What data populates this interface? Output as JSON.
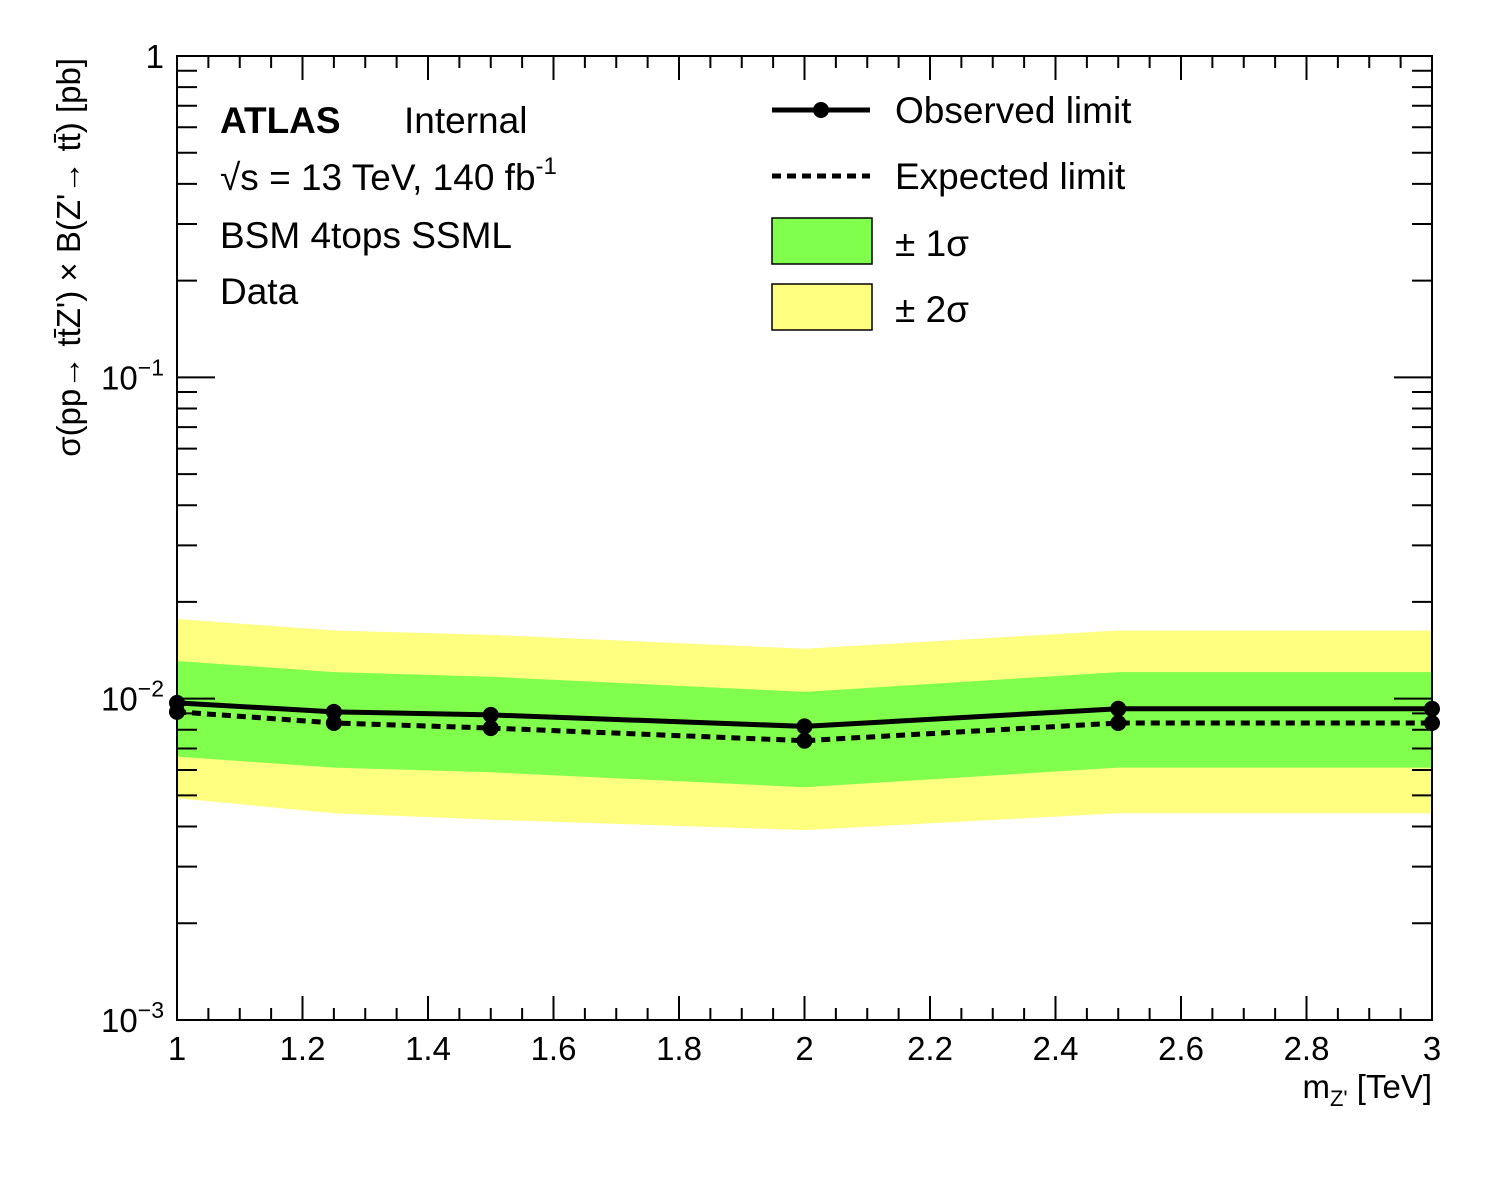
{
  "chart_data": {
    "type": "line",
    "xlabel": "m_{Z'} [TeV]",
    "xlabel_main": "m",
    "xlabel_sub": "Z'",
    "xlabel_unit": " [TeV]",
    "ylabel": "σ(pp→ tt̄Z') × B(Z'→ tt̄) [pb]",
    "xlim": [
      1,
      3
    ],
    "ylim": [
      0.001,
      1
    ],
    "yscale": "log",
    "xticks": [
      1,
      1.2,
      1.4,
      1.6,
      1.8,
      2,
      2.2,
      2.4,
      2.6,
      2.8,
      3
    ],
    "xtick_labels": [
      "1",
      "1.2",
      "1.4",
      "1.6",
      "1.8",
      "2",
      "2.2",
      "2.4",
      "2.6",
      "2.8",
      "3"
    ],
    "ytick_labels": [
      {
        "value": 1,
        "base": "1",
        "exp": ""
      },
      {
        "value": 0.1,
        "base": "10",
        "exp": "−1"
      },
      {
        "value": 0.01,
        "base": "10",
        "exp": "−2"
      },
      {
        "value": 0.001,
        "base": "10",
        "exp": "−3"
      }
    ],
    "x": [
      1,
      1.25,
      1.5,
      2,
      2.5,
      3
    ],
    "series": [
      {
        "name": "Observed limit",
        "style": "solid-markers",
        "values": [
          0.0097,
          0.0091,
          0.0089,
          0.0082,
          0.0093,
          0.0093
        ]
      },
      {
        "name": "Expected limit",
        "style": "dotted",
        "values": [
          0.0091,
          0.0084,
          0.0081,
          0.0074,
          0.0084,
          0.0084
        ]
      }
    ],
    "bands": [
      {
        "name": "± 2σ",
        "color": "#ffff80",
        "upper": [
          0.0177,
          0.0163,
          0.0158,
          0.0143,
          0.0163,
          0.0163
        ],
        "lower": [
          0.0049,
          0.0044,
          0.0042,
          0.0039,
          0.0044,
          0.0044
        ]
      },
      {
        "name": "± 1σ",
        "color": "#80ff4d",
        "upper": [
          0.0131,
          0.0121,
          0.0117,
          0.0105,
          0.0121,
          0.0121
        ],
        "lower": [
          0.0066,
          0.0061,
          0.0059,
          0.0053,
          0.0061,
          0.0061
        ]
      }
    ],
    "annotations": {
      "experiment": "ATLAS",
      "status": "Internal",
      "energy_prefix": "√s = 13 TeV, 140 fb",
      "energy_exp": "-1",
      "analysis": "BSM 4tops SSML",
      "dataset": "Data"
    },
    "legend": {
      "placement": "top-right",
      "entries": [
        "Observed limit",
        "Expected limit",
        "± 1σ",
        "± 2σ"
      ]
    },
    "grid": false
  }
}
